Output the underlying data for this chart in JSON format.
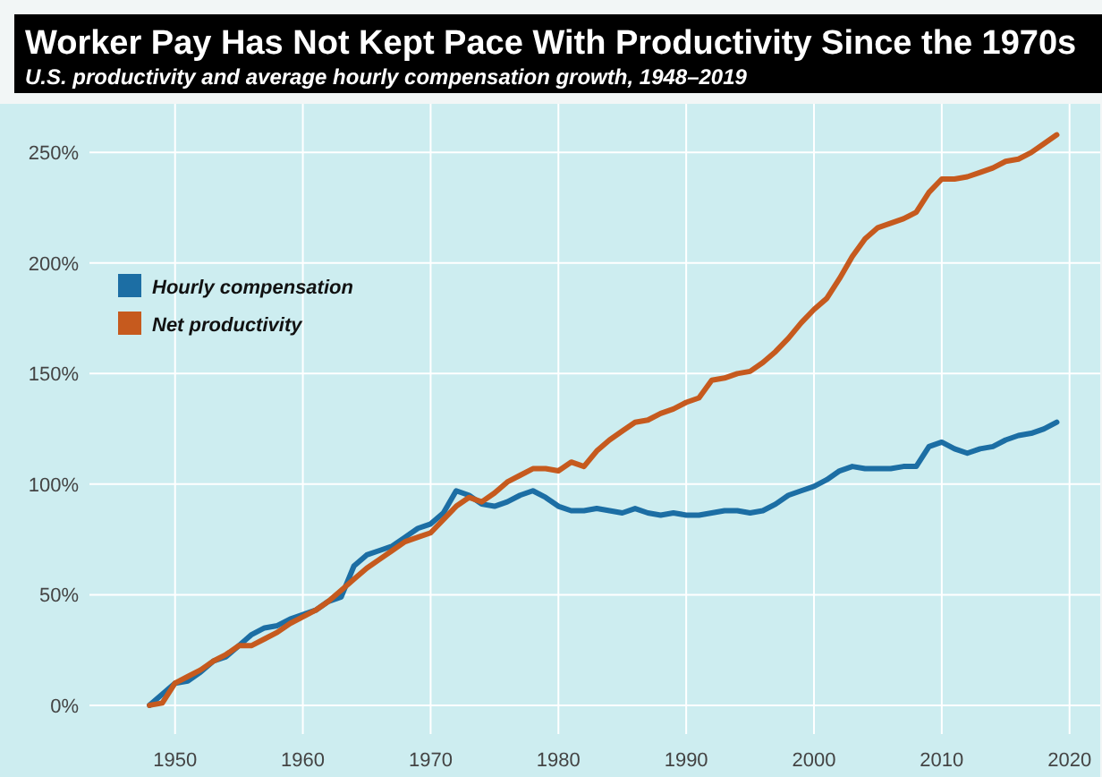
{
  "chart_data": {
    "type": "line",
    "title": "Worker Pay Has Not Kept Pace With Productivity Since the 1970s",
    "subtitle": "U.S. productivity and average hourly compensation growth, 1948–2019",
    "x": [
      1948,
      1949,
      1950,
      1951,
      1952,
      1953,
      1954,
      1955,
      1956,
      1957,
      1958,
      1959,
      1960,
      1961,
      1962,
      1963,
      1964,
      1965,
      1966,
      1967,
      1968,
      1969,
      1970,
      1971,
      1972,
      1973,
      1974,
      1975,
      1976,
      1977,
      1978,
      1979,
      1980,
      1981,
      1982,
      1983,
      1984,
      1985,
      1986,
      1987,
      1988,
      1989,
      1990,
      1991,
      1992,
      1993,
      1994,
      1995,
      1996,
      1997,
      1998,
      1999,
      2000,
      2001,
      2002,
      2003,
      2004,
      2005,
      2006,
      2007,
      2008,
      2009,
      2010,
      2011,
      2012,
      2013,
      2014,
      2015,
      2016,
      2017,
      2018,
      2019
    ],
    "series": [
      {
        "name": "Hourly compensation",
        "color": "#1c6ea4",
        "values": [
          0,
          5,
          10,
          11,
          15,
          20,
          22,
          27,
          32,
          35,
          36,
          39,
          41,
          43,
          47,
          49,
          63,
          68,
          70,
          72,
          76,
          80,
          82,
          87,
          97,
          95,
          91,
          90,
          92,
          95,
          97,
          94,
          90,
          88,
          88,
          89,
          88,
          87,
          89,
          87,
          86,
          87,
          86,
          86,
          87,
          88,
          88,
          87,
          88,
          91,
          95,
          97,
          99,
          102,
          106,
          108,
          107,
          107,
          107,
          108,
          108,
          117,
          119,
          116,
          114,
          116,
          117,
          120,
          122,
          123,
          125,
          128
        ]
      },
      {
        "name": "Net productivity",
        "color": "#c65a1e",
        "values": [
          0,
          1,
          10,
          13,
          16,
          20,
          23,
          27,
          27,
          30,
          33,
          37,
          40,
          43,
          47,
          52,
          57,
          62,
          66,
          70,
          74,
          76,
          78,
          84,
          90,
          94,
          92,
          96,
          101,
          104,
          107,
          107,
          106,
          110,
          108,
          115,
          120,
          124,
          128,
          129,
          132,
          134,
          137,
          139,
          147,
          148,
          150,
          151,
          155,
          160,
          166,
          173,
          179,
          184,
          193,
          203,
          211,
          216,
          218,
          220,
          223,
          232,
          238,
          238,
          239,
          241,
          243,
          246,
          247,
          250,
          254,
          258
        ]
      }
    ],
    "xlim": [
      1943.3,
      2022.4
    ],
    "xticks": [
      1950,
      1960,
      1970,
      1980,
      1990,
      2000,
      2010,
      2020
    ],
    "ylim": [
      -13,
      272
    ],
    "yticks": [
      {
        "value": 0,
        "label": "0%"
      },
      {
        "value": 50,
        "label": "50%"
      },
      {
        "value": 100,
        "label": "100%"
      },
      {
        "value": 150,
        "label": "150%"
      },
      {
        "value": 200,
        "label": "200%"
      },
      {
        "value": 250,
        "label": "250%"
      }
    ],
    "grid": true,
    "legend": "top left"
  }
}
